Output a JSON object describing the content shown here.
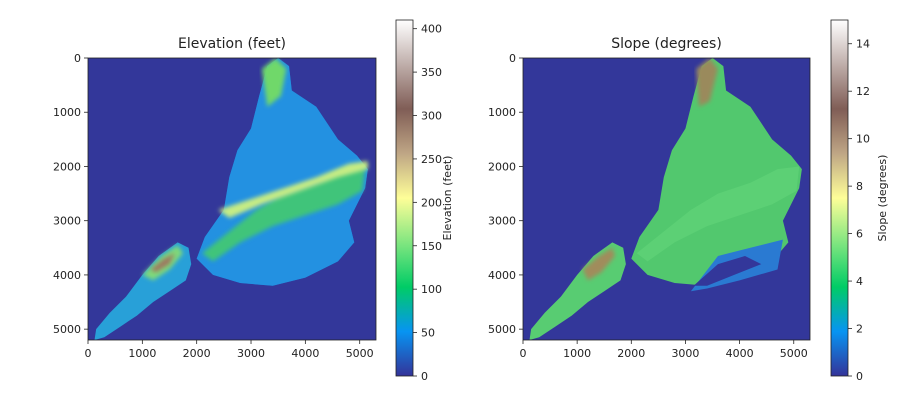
{
  "chart_data": [
    {
      "type": "heatmap",
      "title": "Elevation (feet)",
      "xlabel": "",
      "ylabel": "",
      "x_ticks": [
        0,
        1000,
        2000,
        3000,
        4000,
        5000
      ],
      "y_ticks": [
        0,
        1000,
        2000,
        3000,
        4000,
        5000
      ],
      "xlim": [
        0,
        5300
      ],
      "ylim": [
        5200,
        0
      ],
      "colormap": "terrain",
      "colorbar": {
        "label": "Elevation (feet)",
        "range": [
          0,
          410
        ],
        "ticks": [
          0,
          50,
          100,
          150,
          200,
          250,
          300,
          350,
          400
        ]
      },
      "grid": false
    },
    {
      "type": "heatmap",
      "title": "Slope (degrees)",
      "xlabel": "",
      "ylabel": "",
      "x_ticks": [
        0,
        1000,
        2000,
        3000,
        4000,
        5000
      ],
      "y_ticks": [
        0,
        1000,
        2000,
        3000,
        4000,
        5000
      ],
      "xlim": [
        0,
        5300
      ],
      "ylim": [
        5200,
        0
      ],
      "colormap": "terrain",
      "colorbar": {
        "label": "Slope (degrees)",
        "range": [
          0,
          15
        ],
        "ticks": [
          0,
          2,
          4,
          6,
          8,
          10,
          12,
          14
        ]
      },
      "grid": false
    }
  ],
  "colors": {
    "background_water": "#33379a",
    "terrain_stops": [
      "#333399",
      "#0794f2",
      "#00cc66",
      "#81e680",
      "#fefe98",
      "#bfa685",
      "#805d56",
      "#bfaeaa",
      "#ffffff"
    ]
  }
}
